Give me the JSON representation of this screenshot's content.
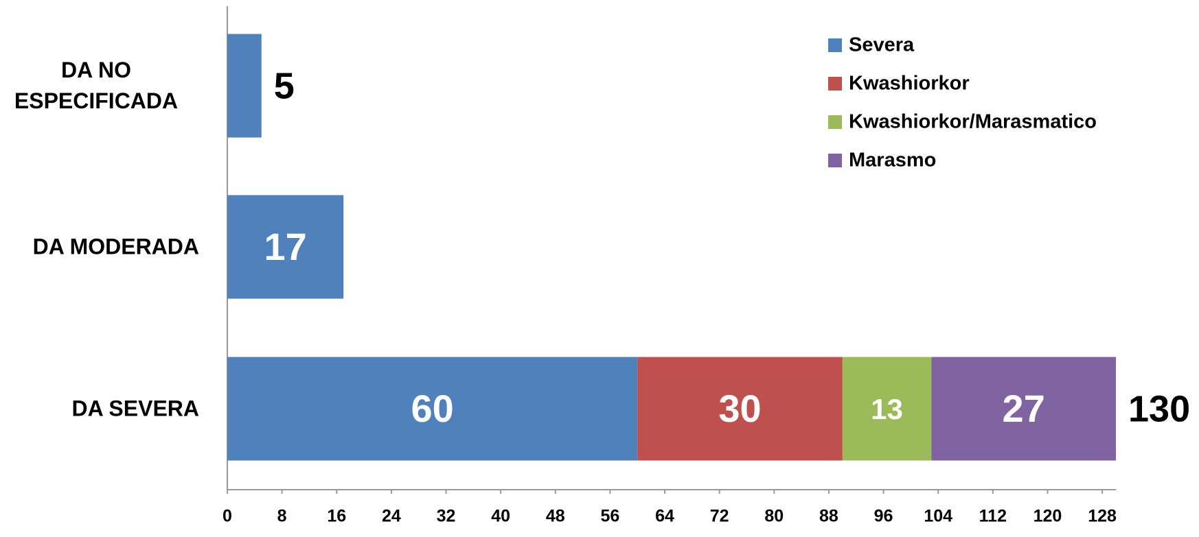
{
  "chart_data": {
    "type": "stacked_bar_horizontal",
    "categories": [
      "DA SEVERA",
      "DA MODERADA",
      "DA NO ESPECIFICADA"
    ],
    "series": [
      {
        "name": "Severa",
        "color": "#4f81bd",
        "values": [
          60,
          17,
          5
        ]
      },
      {
        "name": "Kwashiorkor",
        "color": "#c0504d",
        "values": [
          30,
          null,
          null
        ]
      },
      {
        "name": "Kwashiorkor/Marasmatico",
        "color": "#9bbb59",
        "values": [
          13,
          null,
          null
        ]
      },
      {
        "name": "Marasmo",
        "color": "#8064a2",
        "values": [
          27,
          null,
          null
        ]
      }
    ],
    "totals": [
      130,
      null,
      5
    ],
    "xlim": [
      0,
      130
    ],
    "xticks": [
      0,
      8,
      16,
      24,
      32,
      40,
      48,
      56,
      64,
      72,
      80,
      88,
      96,
      104,
      112,
      120,
      128
    ],
    "legend": "upper right"
  }
}
